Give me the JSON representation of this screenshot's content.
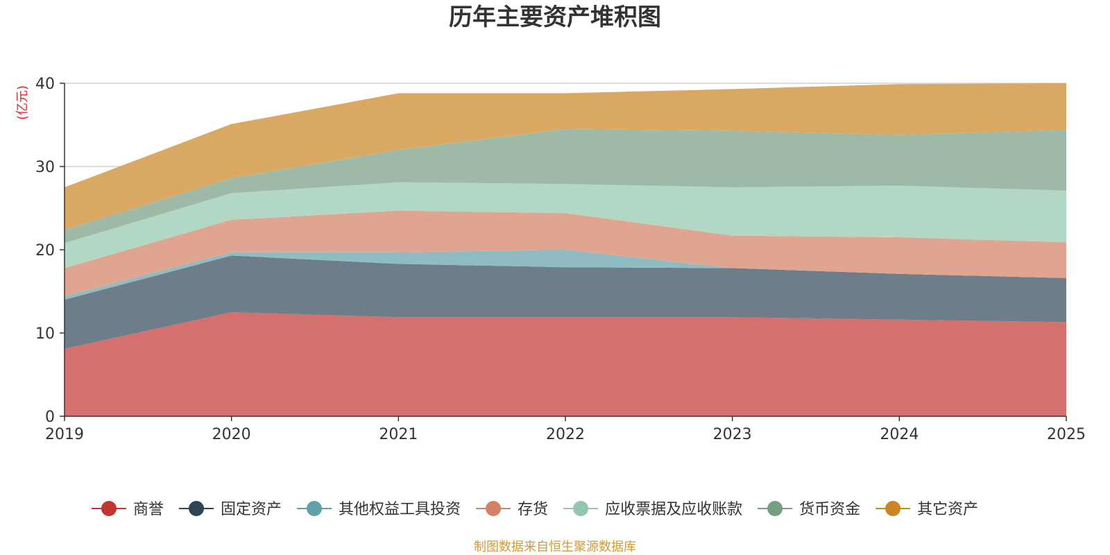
{
  "chart_data": {
    "type": "area",
    "stacked": true,
    "title": "历年主要资产堆积图",
    "unit_label": "(亿元)",
    "x": [
      "2019",
      "2020",
      "2021",
      "2022",
      "2023",
      "2024",
      "2025"
    ],
    "ylim": [
      0,
      40
    ],
    "yticks": [
      "0",
      "10",
      "20",
      "30",
      "40"
    ],
    "grid": true,
    "legend_position": "bottom",
    "series": [
      {
        "name": "商誉",
        "color": "#c23531",
        "fill": "#d4706d",
        "values": [
          8.1,
          12.5,
          11.9,
          11.9,
          11.9,
          11.6,
          11.3
        ]
      },
      {
        "name": "固定资产",
        "color": "#2f4554",
        "fill": "#6d7d89",
        "values": [
          5.9,
          6.8,
          6.4,
          6.0,
          5.9,
          5.5,
          5.3
        ]
      },
      {
        "name": "其他权益工具投资",
        "color": "#61a0a8",
        "fill": "#8fbcc2",
        "values": [
          0.4,
          0.4,
          1.4,
          2.1,
          0.0,
          0.0,
          0.0
        ]
      },
      {
        "name": "存货",
        "color": "#d48265",
        "fill": "#e0a590",
        "values": [
          3.4,
          3.9,
          5.0,
          4.4,
          3.9,
          4.4,
          4.3
        ]
      },
      {
        "name": "应收票据及应收账款",
        "color": "#91c7ae",
        "fill": "#b2d8c5",
        "values": [
          3.0,
          3.2,
          3.4,
          3.5,
          5.8,
          6.2,
          6.2
        ]
      },
      {
        "name": "货币资金",
        "color": "#749f83",
        "fill": "#9ebaa6",
        "values": [
          1.6,
          1.8,
          3.9,
          6.6,
          6.8,
          6.1,
          7.3
        ]
      },
      {
        "name": "其它资产",
        "color": "#ca8622",
        "fill": "#d9a964",
        "values": [
          5.1,
          6.5,
          6.8,
          4.3,
          5.0,
          6.1,
          5.6
        ]
      }
    ]
  },
  "footer": {
    "source": "制图数据来自恒生聚源数据库",
    "color": "#d09a3a"
  },
  "colors": {
    "unit_label": "#e8262b",
    "axis": "#333333",
    "grid": "#c8c8c8"
  }
}
